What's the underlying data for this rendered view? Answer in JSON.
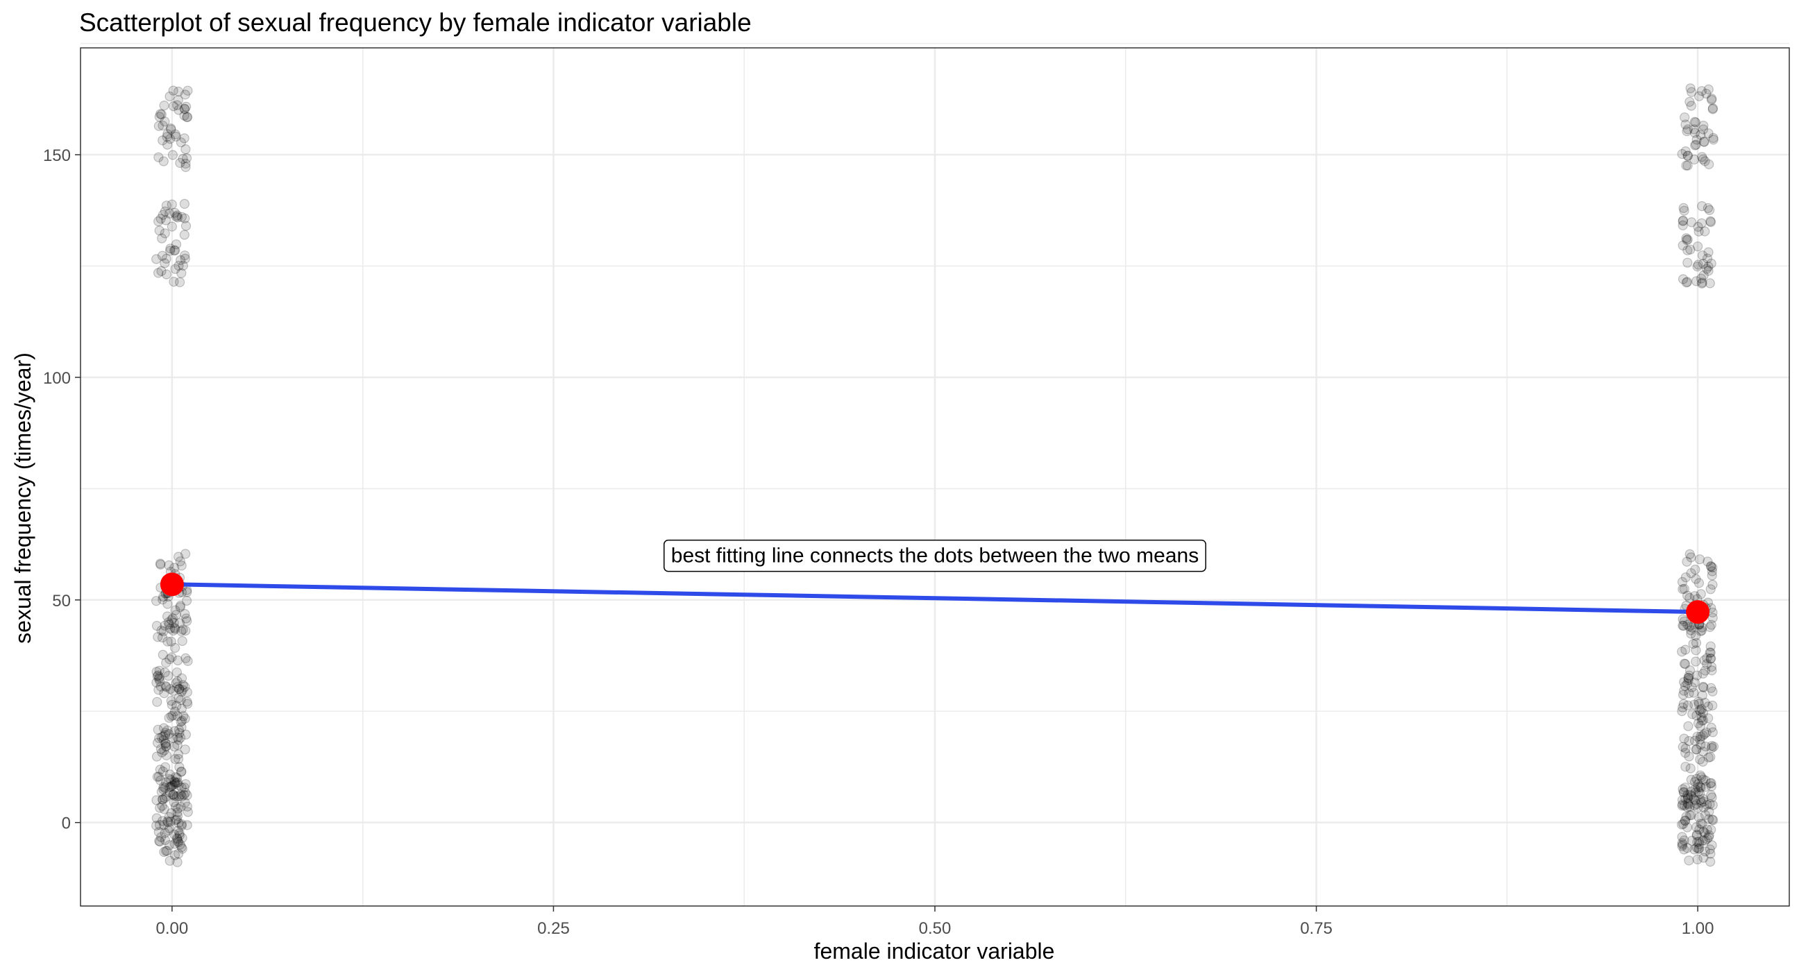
{
  "chart_data": {
    "type": "scatter",
    "title": "Scatterplot of sexual frequency by female indicator variable",
    "xlabel": "female indicator variable",
    "ylabel": "sexual frequency (times/year)",
    "xlim": [
      -0.06,
      1.06
    ],
    "ylim": [
      -18.75,
      174
    ],
    "x_ticks": [
      0.0,
      0.25,
      0.5,
      0.75,
      1.0
    ],
    "x_tick_labels": [
      "0.00",
      "0.25",
      "0.50",
      "0.75",
      "1.00"
    ],
    "y_ticks": [
      0,
      50,
      100,
      150
    ],
    "y_tick_labels": [
      "0",
      "50",
      "100",
      "150"
    ],
    "grid": true,
    "legend": "none",
    "colors": {
      "points": "#000000",
      "means": "#ff0000",
      "fit_line": "#2e4bea",
      "grid": "#ebebeb",
      "panel_border": "#333333"
    },
    "jitter_groups": [
      {
        "x": 0,
        "y_values": [
          0,
          2.5,
          12,
          24,
          38,
          52,
          130,
          156
        ]
      },
      {
        "x": 1,
        "y_values": [
          0,
          2.5,
          12,
          24,
          38,
          52,
          130,
          156
        ]
      }
    ],
    "means": [
      {
        "x": 0,
        "y": 53.5
      },
      {
        "x": 1,
        "y": 47.3
      }
    ],
    "fit_line": {
      "x": [
        0,
        1
      ],
      "y": [
        53.5,
        47.3
      ]
    },
    "annotation": {
      "text": "best fitting line connects the dots between the two means",
      "x": 0.5,
      "y": 60
    }
  }
}
